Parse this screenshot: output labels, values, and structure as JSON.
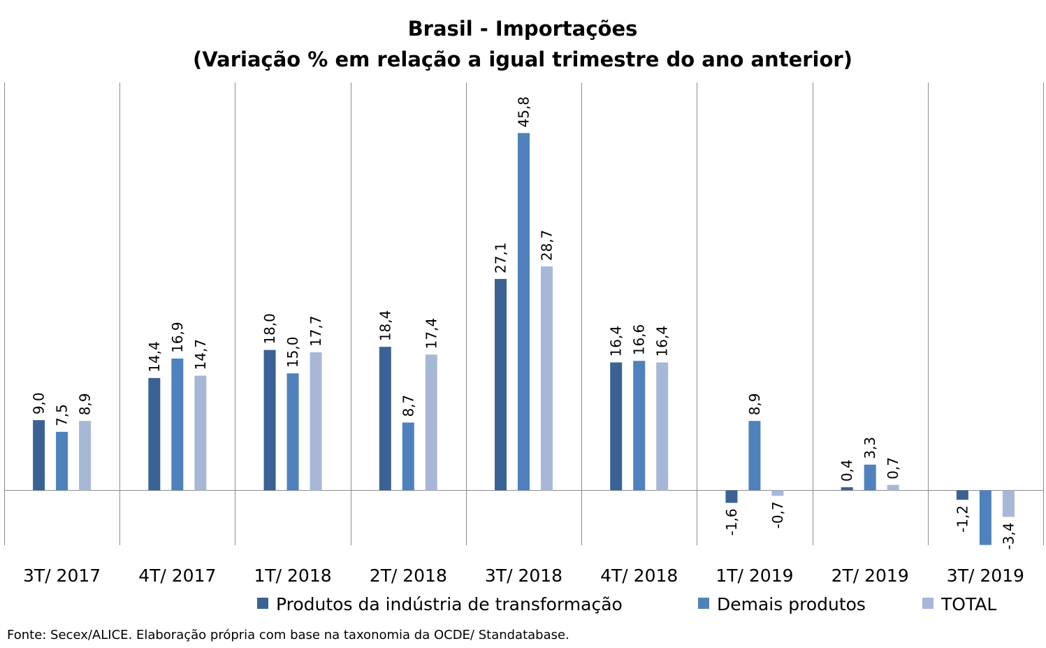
{
  "chart_data": {
    "type": "bar",
    "title": "Brasil - Importações",
    "subtitle": "(Variação % em relação a igual trimestre do ano anterior)",
    "categories": [
      "3T/ 2017",
      "4T/ 2017",
      "1T/ 2018",
      "2T/ 2018",
      "3T/ 2018",
      "4T/ 2018",
      "1T/ 2019",
      "2T/ 2019",
      "3T/ 2019"
    ],
    "series": [
      {
        "name": "Produtos da indústria de transformação",
        "color": "#3a6294",
        "values": [
          9.0,
          14.4,
          18.0,
          18.4,
          27.1,
          16.4,
          -1.6,
          0.4,
          -1.2
        ],
        "labels": [
          "9,0",
          "14,4",
          "18,0",
          "18,4",
          "27,1",
          "16,4",
          "-1,6",
          "0,4",
          "-1,2"
        ]
      },
      {
        "name": "Demais produtos",
        "color": "#4f81bd",
        "values": [
          7.5,
          16.9,
          15.0,
          8.7,
          45.8,
          16.6,
          8.9,
          3.3,
          -7.0
        ],
        "labels": [
          "7,5",
          "16,9",
          "15,0",
          "8,7",
          "45,8",
          "16,6",
          "8,9",
          "3,3",
          ""
        ]
      },
      {
        "name": "TOTAL",
        "color": "#a7b8d7",
        "values": [
          8.9,
          14.7,
          17.7,
          17.4,
          28.7,
          16.4,
          -0.7,
          0.7,
          -3.4
        ],
        "labels": [
          "8,9",
          "14,7",
          "17,7",
          "17,4",
          "28,7",
          "16,4",
          "-0,7",
          "0,7",
          "-3,4"
        ]
      }
    ],
    "ylim": [
      -7,
      52
    ],
    "grid": false,
    "category_separators": true,
    "legend_position": "bottom",
    "xlabel": "",
    "ylabel": ""
  },
  "source": "Fonte: Secex/ALICE. Elaboração própria com base na taxonomia da OCDE/ Standatabase."
}
